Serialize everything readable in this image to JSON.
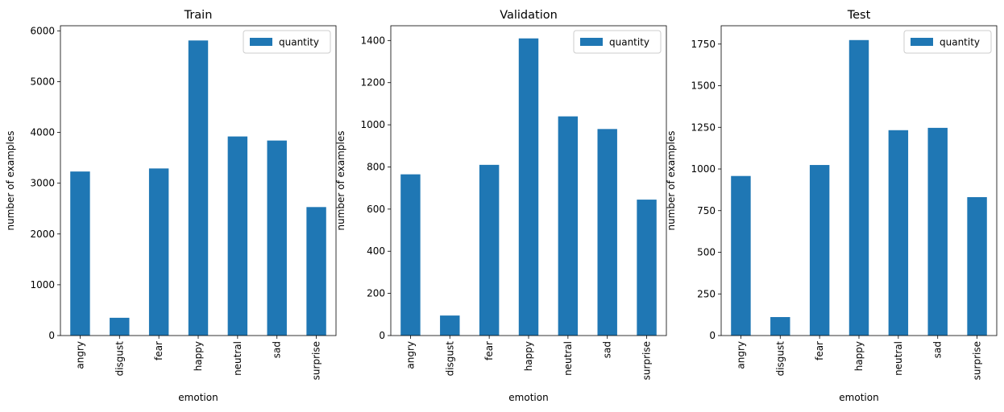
{
  "chart_data": [
    {
      "type": "bar",
      "title": "Train",
      "xlabel": "emotion",
      "ylabel": "number of examples",
      "categories": [
        "angry",
        "disgust",
        "fear",
        "happy",
        "neutral",
        "sad",
        "surprise"
      ],
      "series": [
        {
          "name": "quantity",
          "values": [
            3230,
            350,
            3290,
            5810,
            3920,
            3840,
            2530
          ]
        }
      ],
      "ylim": [
        0,
        6100
      ],
      "yticks": [
        0,
        1000,
        2000,
        3000,
        4000,
        5000,
        6000
      ],
      "ytick_labels": [
        "0",
        "1000",
        "2000",
        "3000",
        "4000",
        "5000",
        "6000"
      ],
      "legend": "top-right",
      "grid": false,
      "color": "#1f77b4"
    },
    {
      "type": "bar",
      "title": "Validation",
      "xlabel": "emotion",
      "ylabel": "number of examples",
      "categories": [
        "angry",
        "disgust",
        "fear",
        "happy",
        "neutral",
        "sad",
        "surprise"
      ],
      "series": [
        {
          "name": "quantity",
          "values": [
            765,
            95,
            810,
            1410,
            1040,
            980,
            645
          ]
        }
      ],
      "ylim": [
        0,
        1470
      ],
      "yticks": [
        0,
        200,
        400,
        600,
        800,
        1000,
        1200,
        1400
      ],
      "ytick_labels": [
        "0",
        "200",
        "400",
        "600",
        "800",
        "1000",
        "1200",
        "1400"
      ],
      "legend": "top-right",
      "grid": false,
      "color": "#1f77b4"
    },
    {
      "type": "bar",
      "title": "Test",
      "xlabel": "emotion",
      "ylabel": "number of examples",
      "categories": [
        "angry",
        "disgust",
        "fear",
        "happy",
        "neutral",
        "sad",
        "surprise"
      ],
      "series": [
        {
          "name": "quantity",
          "values": [
            958,
            111,
            1024,
            1774,
            1233,
            1247,
            831
          ]
        }
      ],
      "ylim": [
        0,
        1860
      ],
      "yticks": [
        0,
        250,
        500,
        750,
        1000,
        1250,
        1500,
        1750
      ],
      "ytick_labels": [
        "0",
        "250",
        "500",
        "750",
        "1000",
        "1250",
        "1500",
        "1750"
      ],
      "legend": "top-right",
      "grid": false,
      "color": "#1f77b4"
    }
  ]
}
